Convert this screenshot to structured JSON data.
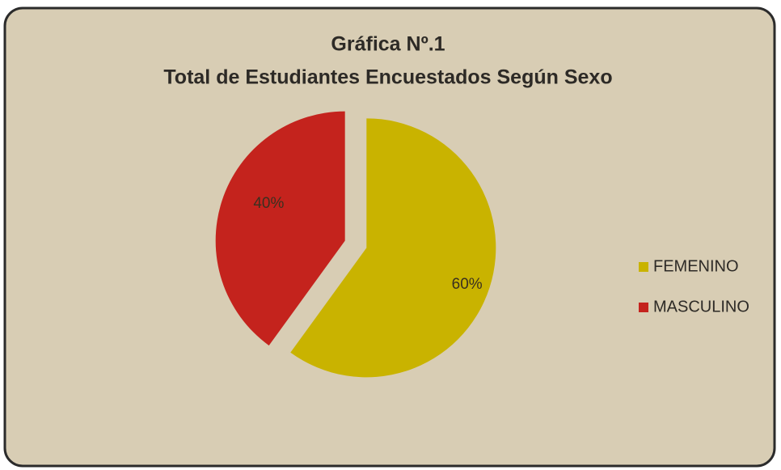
{
  "chart_data": {
    "type": "pie",
    "title": "Gráfica Nº.1",
    "subtitle": "Total de Estudiantes Encuestados  Según  Sexo",
    "categories": [
      "FEMENINO",
      "MASCULINO"
    ],
    "values": [
      60,
      40
    ],
    "value_labels": [
      "60%",
      "40%"
    ],
    "colors": [
      "#c9b300",
      "#c4231d"
    ],
    "legend": "right"
  }
}
